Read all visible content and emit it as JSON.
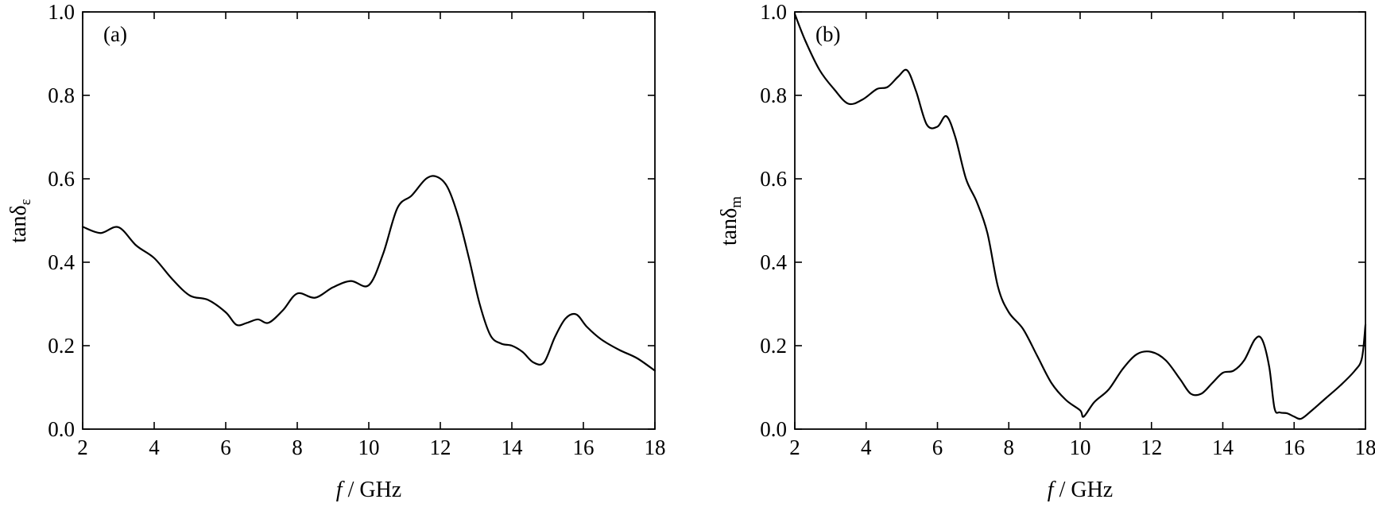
{
  "chart_data": [
    {
      "type": "line",
      "panel_label": "(a)",
      "xlabel_italic": "f",
      "xlabel_rest": " / GHz",
      "ylabel_base": "tanδ",
      "ylabel_sub": "ε",
      "xlim": [
        2,
        18
      ],
      "ylim": [
        0,
        1.0
      ],
      "xticks": [
        2,
        4,
        6,
        8,
        10,
        12,
        14,
        16,
        18
      ],
      "yticks": [
        0.0,
        0.2,
        0.4,
        0.6,
        0.8,
        1.0
      ],
      "xtick_labels": [
        "2",
        "4",
        "6",
        "8",
        "10",
        "12",
        "14",
        "16",
        "18"
      ],
      "ytick_labels": [
        "0.0",
        "0.2",
        "0.4",
        "0.6",
        "0.8",
        "1.0"
      ],
      "grid": false,
      "series": [
        {
          "x": [
            2.0,
            2.5,
            3.0,
            3.5,
            4.0,
            4.5,
            5.0,
            5.5,
            6.0,
            6.3,
            6.6,
            6.9,
            7.2,
            7.6,
            8.0,
            8.5,
            9.0,
            9.5,
            10.0,
            10.4,
            10.8,
            11.2,
            11.6,
            11.9,
            12.2,
            12.5,
            12.8,
            13.1,
            13.4,
            13.7,
            14.0,
            14.3,
            14.6,
            14.9,
            15.2,
            15.5,
            15.8,
            16.1,
            16.5,
            17.0,
            17.5,
            18.0
          ],
          "y": [
            0.485,
            0.47,
            0.484,
            0.44,
            0.41,
            0.36,
            0.32,
            0.31,
            0.28,
            0.25,
            0.255,
            0.263,
            0.255,
            0.285,
            0.325,
            0.315,
            0.34,
            0.355,
            0.345,
            0.42,
            0.53,
            0.56,
            0.6,
            0.605,
            0.58,
            0.51,
            0.41,
            0.3,
            0.225,
            0.205,
            0.2,
            0.185,
            0.16,
            0.16,
            0.22,
            0.265,
            0.275,
            0.245,
            0.215,
            0.19,
            0.17,
            0.14
          ]
        }
      ]
    },
    {
      "type": "line",
      "panel_label": "(b)",
      "xlabel_italic": "f",
      "xlabel_rest": " / GHz",
      "ylabel_base": "tanδ",
      "ylabel_sub": "m",
      "xlim": [
        2,
        18
      ],
      "ylim": [
        0,
        1.0
      ],
      "xticks": [
        2,
        4,
        6,
        8,
        10,
        12,
        14,
        16,
        18
      ],
      "yticks": [
        0.0,
        0.2,
        0.4,
        0.6,
        0.8,
        1.0
      ],
      "xtick_labels": [
        "2",
        "4",
        "6",
        "8",
        "10",
        "12",
        "14",
        "16",
        "18"
      ],
      "ytick_labels": [
        "0.0",
        "0.2",
        "0.4",
        "0.6",
        "0.8",
        "1.0"
      ],
      "grid": false,
      "series": [
        {
          "x": [
            2.0,
            2.3,
            2.7,
            3.1,
            3.5,
            3.9,
            4.3,
            4.6,
            4.9,
            5.15,
            5.4,
            5.7,
            6.0,
            6.25,
            6.5,
            6.8,
            7.1,
            7.4,
            7.7,
            8.0,
            8.4,
            8.8,
            9.2,
            9.6,
            10.0,
            10.1,
            10.4,
            10.8,
            11.2,
            11.6,
            12.0,
            12.4,
            12.8,
            13.1,
            13.4,
            13.7,
            14.0,
            14.3,
            14.6,
            14.9,
            15.1,
            15.3,
            15.45,
            15.6,
            15.8,
            16.0,
            16.2,
            16.5,
            16.9,
            17.3,
            17.7,
            17.9,
            18.0
          ],
          "y": [
            0.995,
            0.93,
            0.86,
            0.815,
            0.78,
            0.79,
            0.815,
            0.82,
            0.845,
            0.86,
            0.81,
            0.73,
            0.725,
            0.75,
            0.7,
            0.6,
            0.545,
            0.47,
            0.34,
            0.28,
            0.24,
            0.175,
            0.11,
            0.07,
            0.045,
            0.03,
            0.065,
            0.095,
            0.145,
            0.18,
            0.185,
            0.165,
            0.12,
            0.085,
            0.085,
            0.11,
            0.135,
            0.14,
            0.165,
            0.215,
            0.215,
            0.15,
            0.05,
            0.04,
            0.038,
            0.03,
            0.025,
            0.045,
            0.075,
            0.105,
            0.14,
            0.17,
            0.25
          ]
        }
      ]
    }
  ]
}
